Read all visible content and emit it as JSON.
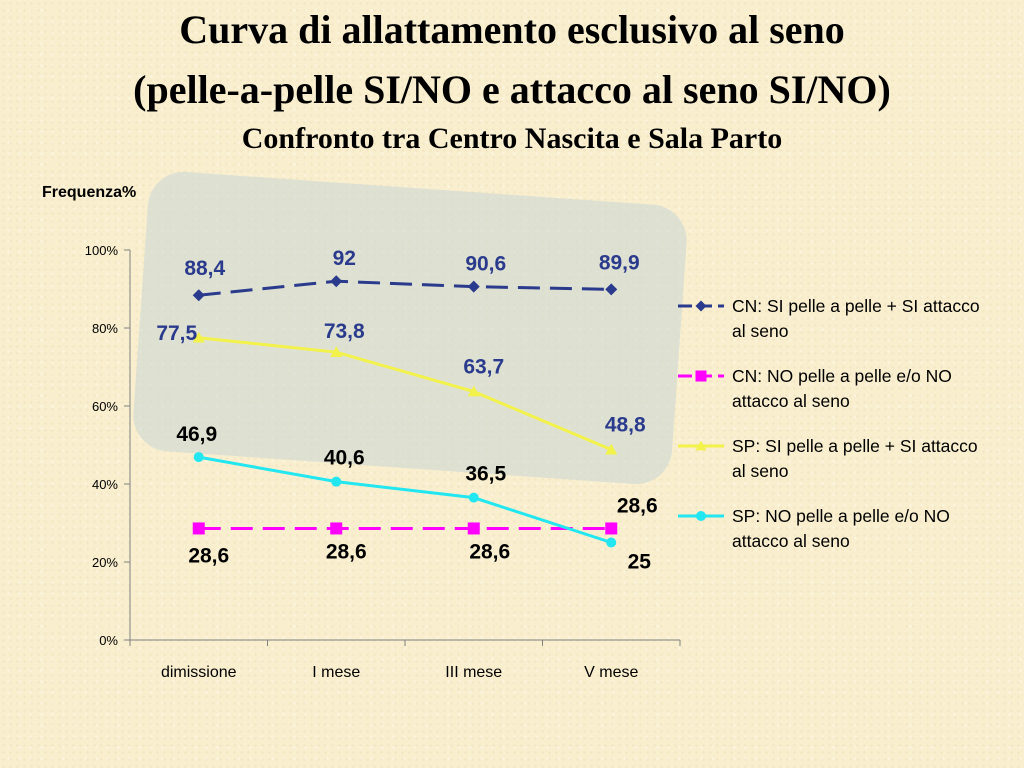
{
  "slide": {
    "title_line1": "Curva di allattamento esclusivo al seno",
    "title_line2": "(pelle-a-pelle SI/NO e attacco al seno SI/NO)",
    "subtitle": "Confronto tra Centro Nascita e Sala Parto"
  },
  "chart_data": {
    "type": "line",
    "ylabel": "Frequenza%",
    "xlabel": "",
    "categories": [
      "dimissione",
      "I mese",
      "III mese",
      "V mese"
    ],
    "ylim": [
      0,
      100
    ],
    "yticks": [
      "0%",
      "20%",
      "40%",
      "60%",
      "80%",
      "100%"
    ],
    "grid": false,
    "legend_position": "right",
    "series": [
      {
        "name": "CN: SI pelle a pelle + SI attacco al seno",
        "values": [
          88.4,
          92,
          90.6,
          89.9
        ],
        "labels": [
          "88,4",
          "92",
          "90,6",
          "89,9"
        ],
        "color": "#2a3a8c",
        "marker": "diamond",
        "dashed": true
      },
      {
        "name": "CN: NO pelle a pelle e/o NO attacco al seno",
        "values": [
          28.6,
          28.6,
          28.6,
          28.6
        ],
        "labels": [
          "28,6",
          "28,6",
          "28,6",
          "28,6"
        ],
        "color": "#ff00ff",
        "marker": "square",
        "dashed": true
      },
      {
        "name": "SP: SI pelle a pelle + SI attacco al seno",
        "values": [
          77.5,
          73.8,
          63.7,
          48.8
        ],
        "labels": [
          "77,5",
          "73,8",
          "63,7",
          "48,8"
        ],
        "color": "#f2f24a",
        "marker": "triangle",
        "dashed": false
      },
      {
        "name": "SP: NO pelle a pelle e/o NO attacco al seno",
        "values": [
          46.9,
          40.6,
          36.5,
          25
        ],
        "labels": [
          "46,9",
          "40,6",
          "36,5",
          "25"
        ],
        "color": "#22e6f0",
        "marker": "circle",
        "dashed": false
      }
    ]
  }
}
